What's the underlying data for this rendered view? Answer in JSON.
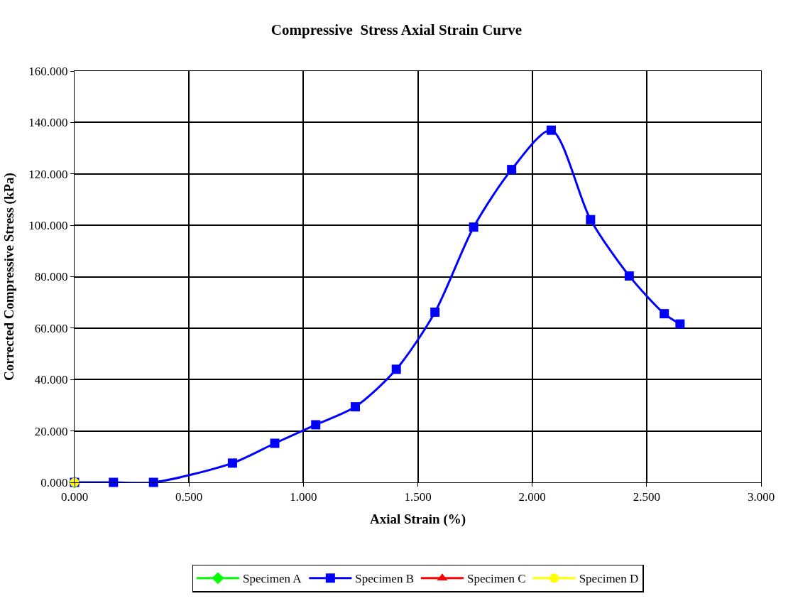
{
  "chart_data": {
    "type": "line",
    "title": "Compressive  Stress Axial Strain Curve",
    "xlabel": "Axial Strain (%)",
    "ylabel": "Corrected Compressive Stress (kPa)",
    "xlim": [
      0,
      3
    ],
    "ylim": [
      0,
      160
    ],
    "xticks": [
      {
        "value": 0,
        "label": "0.000"
      },
      {
        "value": 0.5,
        "label": "0.500"
      },
      {
        "value": 1,
        "label": "1.000"
      },
      {
        "value": 1.5,
        "label": "1.500"
      },
      {
        "value": 2,
        "label": "2.000"
      },
      {
        "value": 2.5,
        "label": "2.500"
      },
      {
        "value": 3,
        "label": "3.000"
      }
    ],
    "yticks": [
      {
        "value": 0,
        "label": "0.000"
      },
      {
        "value": 20,
        "label": "20.000"
      },
      {
        "value": 40,
        "label": "40.000"
      },
      {
        "value": 60,
        "label": "60.000"
      },
      {
        "value": 80,
        "label": "80.000"
      },
      {
        "value": 100,
        "label": "100.000"
      },
      {
        "value": 120,
        "label": "120.000"
      },
      {
        "value": 140,
        "label": "140.000"
      },
      {
        "value": 160,
        "label": "160.000"
      }
    ],
    "grid": true,
    "legend": "bottom",
    "line_style": "solid",
    "series": [
      {
        "name": "Specimen A",
        "color": "#00ff00",
        "marker": "diamond",
        "x": [
          0
        ],
        "values": [
          0
        ]
      },
      {
        "name": "Specimen B",
        "color": "#0000ff",
        "marker": "square",
        "x": [
          0,
          0.17,
          0.345,
          0.69,
          0.875,
          1.054,
          1.227,
          1.406,
          1.575,
          1.744,
          1.91,
          2.083,
          2.255,
          2.424,
          2.577,
          2.646
        ],
        "values": [
          0,
          0,
          0,
          7.5,
          15.2,
          22.4,
          29.4,
          44.0,
          66.2,
          99.3,
          121.7,
          137.0,
          102.2,
          80.3,
          65.6,
          61.6
        ]
      },
      {
        "name": "Specimen C",
        "color": "#ff0000",
        "marker": "triangle",
        "x": [
          0
        ],
        "values": [
          0
        ]
      },
      {
        "name": "Specimen D",
        "color": "#ffff00",
        "marker": "circle",
        "x": [
          0
        ],
        "values": [
          0
        ]
      }
    ]
  }
}
